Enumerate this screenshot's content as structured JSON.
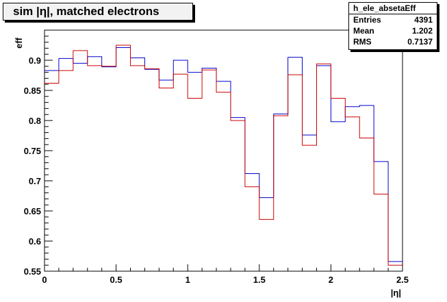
{
  "title": "sim |η|, matched electrons",
  "stats": {
    "name": "h_ele_absetaEff",
    "entries_label": "Entries",
    "entries": "4391",
    "mean_label": "Mean",
    "mean": "1.202",
    "rms_label": "RMS",
    "rms": "0.7137"
  },
  "chart_data": {
    "type": "line",
    "title": "sim |η|, matched electrons",
    "xlabel": "|η|",
    "ylabel": "eff",
    "xlim": [
      0,
      2.5
    ],
    "ylim": [
      0.55,
      0.95
    ],
    "xticks": [
      0,
      0.5,
      1,
      1.5,
      2,
      2.5
    ],
    "yticks": [
      0.55,
      0.6,
      0.65,
      0.7,
      0.75,
      0.8,
      0.85,
      0.9
    ],
    "grid": false,
    "bin_width": 0.1,
    "series": [
      {
        "color": "#0000cc",
        "values": [
          0.883,
          0.903,
          0.895,
          0.906,
          0.889,
          0.921,
          0.904,
          0.885,
          0.867,
          0.9,
          0.88,
          0.887,
          0.865,
          0.805,
          0.712,
          0.672,
          0.811,
          0.905,
          0.776,
          0.891,
          0.798,
          0.823,
          0.825,
          0.732,
          0.566
        ]
      },
      {
        "color": "#cc0000",
        "values": [
          0.862,
          0.883,
          0.916,
          0.891,
          0.89,
          0.925,
          0.891,
          0.886,
          0.854,
          0.877,
          0.837,
          0.884,
          0.847,
          0.8,
          0.69,
          0.636,
          0.808,
          0.876,
          0.759,
          0.894,
          0.837,
          0.806,
          0.771,
          0.678,
          0.56
        ]
      }
    ]
  }
}
